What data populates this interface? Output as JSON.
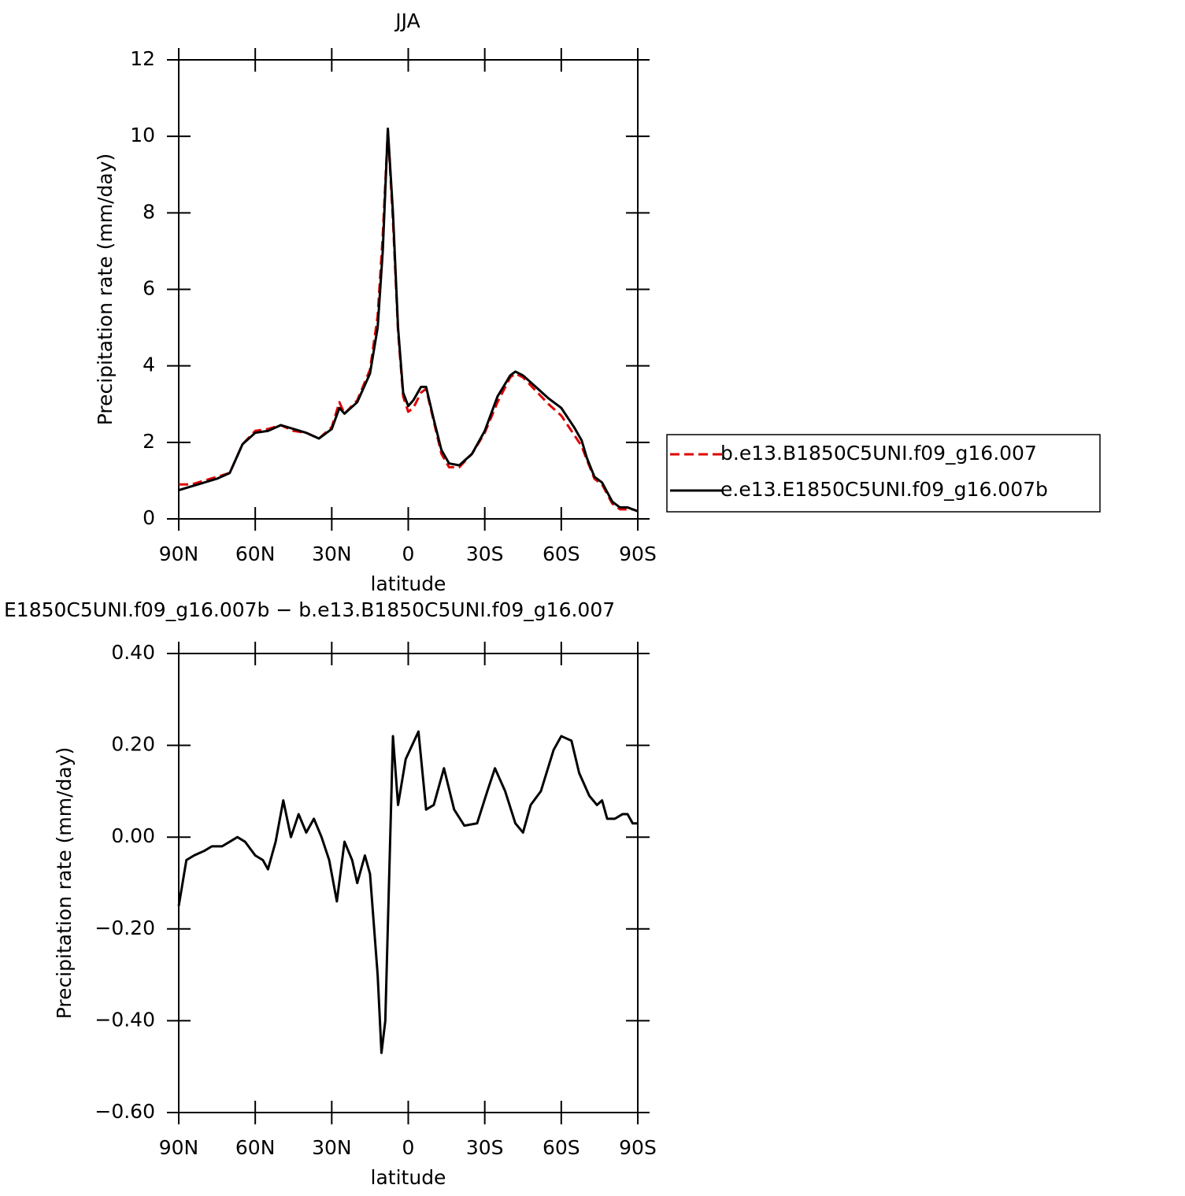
{
  "chart_data": [
    {
      "type": "line",
      "title": "JJA",
      "xlabel": "latitude",
      "ylabel": "Precipitation rate (mm/day)",
      "x": [
        90,
        85,
        80,
        75,
        70,
        65,
        60,
        55,
        50,
        45,
        40,
        35,
        30,
        27,
        25,
        20,
        15,
        12,
        10,
        8,
        6,
        4,
        2,
        0,
        -2,
        -5,
        -7,
        -10,
        -13,
        -16,
        -20,
        -25,
        -30,
        -35,
        -40,
        -42,
        -45,
        -50,
        -55,
        -60,
        -65,
        -68,
        -70,
        -73,
        -76,
        -80,
        -83,
        -86,
        -88,
        -90
      ],
      "series": [
        {
          "name": "b.e13.B1850C5UNI.f09_g16.007",
          "color": "#e00000",
          "dash": true,
          "values": [
            0.9,
            0.9,
            1.0,
            1.1,
            1.2,
            1.95,
            2.3,
            2.35,
            2.45,
            2.3,
            2.25,
            2.1,
            2.4,
            3.05,
            2.75,
            3.1,
            3.9,
            5.3,
            7.4,
            10.15,
            7.8,
            4.9,
            3.2,
            2.8,
            2.9,
            3.3,
            3.4,
            2.55,
            1.7,
            1.35,
            1.35,
            1.7,
            2.25,
            3.05,
            3.7,
            3.8,
            3.7,
            3.35,
            3.0,
            2.7,
            2.2,
            1.9,
            1.55,
            1.05,
            0.9,
            0.4,
            0.25,
            0.25,
            0.25,
            0.2
          ]
        },
        {
          "name": "e.e13.E1850C5UNI.f09_g16.007b",
          "color": "#000000",
          "dash": false,
          "values": [
            0.75,
            0.85,
            0.95,
            1.05,
            1.2,
            1.95,
            2.25,
            2.3,
            2.45,
            2.35,
            2.25,
            2.1,
            2.35,
            2.9,
            2.75,
            3.05,
            3.8,
            5.0,
            7.0,
            10.2,
            8.0,
            5.0,
            3.3,
            2.95,
            3.1,
            3.45,
            3.45,
            2.6,
            1.8,
            1.45,
            1.4,
            1.7,
            2.3,
            3.2,
            3.75,
            3.85,
            3.75,
            3.45,
            3.15,
            2.9,
            2.4,
            2.05,
            1.6,
            1.1,
            0.95,
            0.45,
            0.3,
            0.3,
            0.25,
            0.2
          ]
        }
      ],
      "xlim": [
        90,
        -90
      ],
      "xticks": [
        {
          "value": 90,
          "label": "90N"
        },
        {
          "value": 60,
          "label": "60N"
        },
        {
          "value": 30,
          "label": "30N"
        },
        0,
        {
          "value": -30,
          "label": "30S"
        },
        {
          "value": -60,
          "label": "60S"
        },
        {
          "value": -90,
          "label": "90S"
        }
      ],
      "ylim": [
        0,
        12
      ],
      "yticks": [
        0,
        2,
        4,
        6,
        8,
        10,
        12
      ],
      "legend": "right"
    },
    {
      "type": "line",
      "title": "E1850C5UNI.f09_g16.007b − b.e13.B1850C5UNI.f09_g16.007",
      "xlabel": "latitude",
      "ylabel": "Precipitation rate (mm/day)",
      "x": [
        90,
        87,
        84,
        80,
        77,
        73,
        70,
        67,
        64,
        60,
        57,
        55,
        52,
        49,
        46,
        43,
        40,
        37,
        34,
        31,
        28,
        25,
        22,
        20,
        17,
        15,
        12,
        10.5,
        9,
        6,
        4,
        1,
        -4,
        -7,
        -10,
        -14,
        -18,
        -22,
        -27,
        -31,
        -34,
        -38,
        -42,
        -45,
        -48,
        -52,
        -57,
        -60,
        -64,
        -67,
        -71,
        -74,
        -76,
        -78,
        -81,
        -84,
        -86,
        -88,
        -90
      ],
      "series": [
        {
          "name": null,
          "color": "#000000",
          "dash": false,
          "values": [
            -0.15,
            -0.05,
            -0.04,
            -0.03,
            -0.02,
            -0.02,
            -0.01,
            0.0,
            -0.01,
            -0.04,
            -0.05,
            -0.07,
            -0.01,
            0.08,
            0.0,
            0.05,
            0.01,
            0.04,
            0.0,
            -0.05,
            -0.14,
            -0.01,
            -0.05,
            -0.1,
            -0.04,
            -0.08,
            -0.3,
            -0.47,
            -0.4,
            0.22,
            0.07,
            0.17,
            0.23,
            0.06,
            0.07,
            0.15,
            0.06,
            0.025,
            0.03,
            0.1,
            0.15,
            0.1,
            0.03,
            0.01,
            0.07,
            0.1,
            0.19,
            0.22,
            0.21,
            0.14,
            0.09,
            0.07,
            0.08,
            0.04,
            0.04,
            0.05,
            0.05,
            0.03,
            0.03
          ]
        }
      ],
      "xlim": [
        90,
        -90
      ],
      "xticks": [
        {
          "value": 90,
          "label": "90N"
        },
        {
          "value": 60,
          "label": "60N"
        },
        {
          "value": 30,
          "label": "30N"
        },
        0,
        {
          "value": -30,
          "label": "30S"
        },
        {
          "value": -60,
          "label": "60S"
        },
        {
          "value": -90,
          "label": "90S"
        }
      ],
      "ylim": [
        -0.6,
        0.4
      ],
      "yticks": [
        {
          "value": -0.6,
          "label": "−0.60"
        },
        {
          "value": -0.4,
          "label": "−0.40"
        },
        {
          "value": -0.2,
          "label": "−0.20"
        },
        {
          "value": 0,
          "label": "0.00"
        },
        {
          "value": 0.2,
          "label": "0.20"
        },
        {
          "value": 0.4,
          "label": "0.40"
        }
      ]
    }
  ]
}
